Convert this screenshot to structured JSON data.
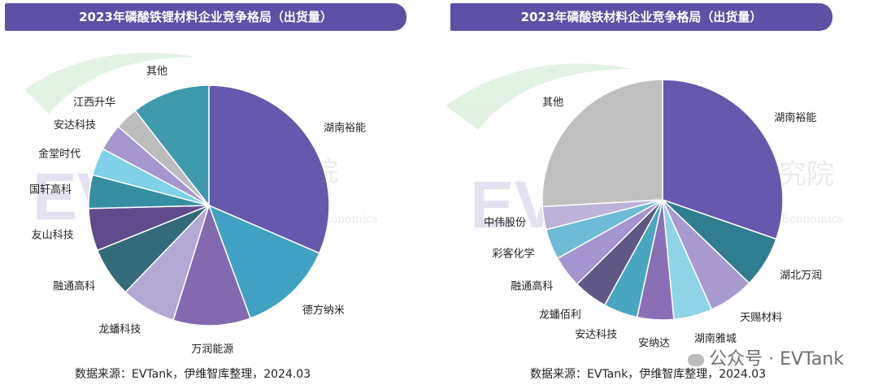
{
  "watermark": {
    "logo_text": "EVTank",
    "cn_name": "伊维经济研究院",
    "cn_short_1": "伊维",
    "cn_short_2": "智库",
    "en_name": "China YiWei Institute of Economics",
    "corner_mark": "公众号 · EVTank"
  },
  "chart_data": [
    {
      "type": "pie",
      "title": "2023年磷酸铁锂材料企业竞争格局（出货量）",
      "source": "数据来源：EVTank，伊维智库整理，2024.03",
      "slices": [
        {
          "label": "湖南裕能",
          "value": 31.5,
          "color": "#6658ad"
        },
        {
          "label": "德方纳米",
          "value": 12.9,
          "color": "#3fa2c3"
        },
        {
          "label": "万润能源",
          "value": 10.4,
          "color": "#8469b0"
        },
        {
          "label": "龙蟠科技",
          "value": 7.4,
          "color": "#b3a8d3"
        },
        {
          "label": "融通高科",
          "value": 6.7,
          "color": "#336b7a"
        },
        {
          "label": "友山科技",
          "value": 5.7,
          "color": "#5f4a8c"
        },
        {
          "label": "国轩高科",
          "value": 4.5,
          "color": "#368ea3"
        },
        {
          "label": "金堂时代",
          "value": 3.7,
          "color": "#7fd0e9"
        },
        {
          "label": "安达科技",
          "value": 3.6,
          "color": "#a596cf"
        },
        {
          "label": "江西升华",
          "value": 3.1,
          "color": "#bcbcbc"
        },
        {
          "label": "其他",
          "value": 10.5,
          "color": "#3f9aae"
        }
      ]
    },
    {
      "type": "pie",
      "title": "2023年磷酸铁材料企业竞争格局（出货量）",
      "source": "数据来源：EVTank，伊维智库整理，2024.03",
      "slices": [
        {
          "label": "湖南裕能",
          "value": 30.3,
          "color": "#6658ad"
        },
        {
          "label": "湖北万润",
          "value": 6.9,
          "color": "#2f7d90"
        },
        {
          "label": "天赐材料",
          "value": 6.1,
          "color": "#a899cf"
        },
        {
          "label": "湖南雅城",
          "value": 5.2,
          "color": "#8fd3e6"
        },
        {
          "label": "安纳达",
          "value": 4.9,
          "color": "#8a6fb7"
        },
        {
          "label": "安达科技",
          "value": 4.6,
          "color": "#48a6c0"
        },
        {
          "label": "龙蟠佰利",
          "value": 4.6,
          "color": "#5f5885"
        },
        {
          "label": "融通高科",
          "value": 4.3,
          "color": "#a494cf"
        },
        {
          "label": "彩客化学",
          "value": 4.1,
          "color": "#6dbbd6"
        },
        {
          "label": "中伟股份",
          "value": 3.1,
          "color": "#bdb2d9"
        },
        {
          "label": "其他",
          "value": 25.9,
          "color": "#bfbfbf"
        }
      ]
    }
  ]
}
